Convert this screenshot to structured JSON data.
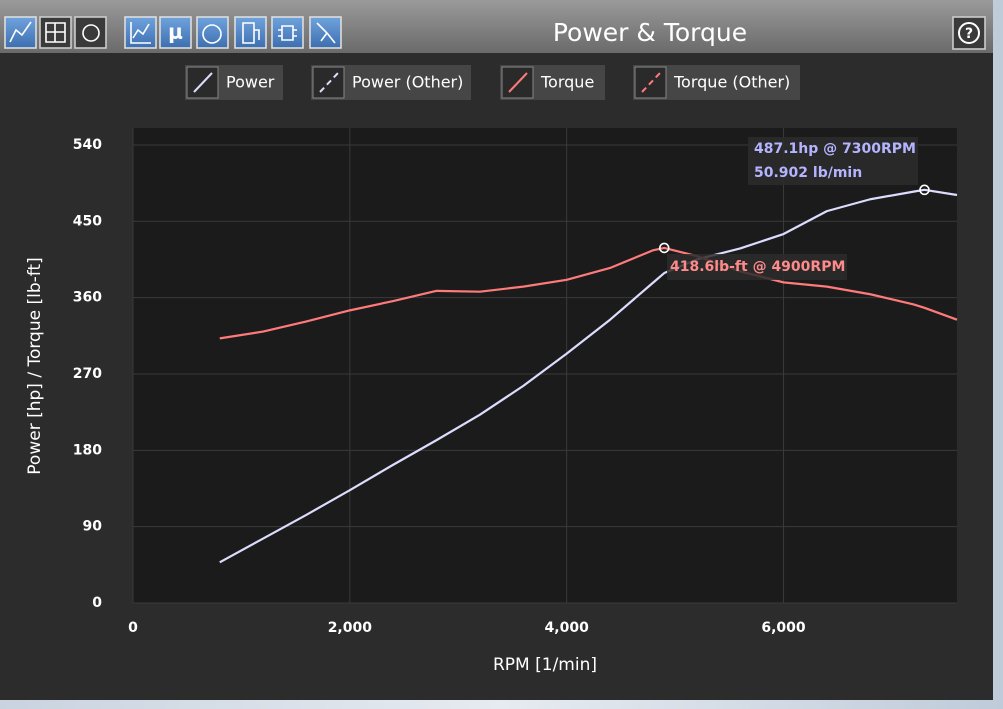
{
  "toolbar": {
    "title": "Power & Torque",
    "help": "?",
    "mu_icon": "μ"
  },
  "chart_data": {
    "type": "line",
    "xlabel": "RPM [1/min]",
    "ylabel": "Power [hp] / Torque [lb-ft]",
    "x": [
      800,
      1200,
      1600,
      2000,
      2400,
      2800,
      3200,
      3600,
      4000,
      4400,
      4800,
      4900,
      5200,
      5600,
      6000,
      6400,
      6800,
      7200,
      7300,
      7600
    ],
    "series": [
      {
        "name": "Power",
        "color": "#dcdcff",
        "values": [
          48,
          76,
          104,
          133,
          163,
          192,
          222,
          256,
          294,
          334,
          378,
          389,
          405,
          418,
          435,
          462,
          476,
          485,
          487.1,
          481
        ]
      },
      {
        "name": "Torque",
        "color": "#ff7a7a",
        "values": [
          312,
          320,
          332,
          345,
          356,
          368,
          367,
          373,
          381,
          395,
          416,
          418.6,
          409,
          391,
          378,
          373,
          364,
          352,
          348,
          334
        ]
      }
    ],
    "legend": [
      {
        "name": "Power",
        "color": "#dcdcff",
        "style": "solid"
      },
      {
        "name": "Power (Other)",
        "color": "#dcdcff",
        "style": "dashed"
      },
      {
        "name": "Torque",
        "color": "#ff7a7a",
        "style": "solid"
      },
      {
        "name": "Torque (Other)",
        "color": "#ff7a7a",
        "style": "dashed"
      }
    ],
    "annotations": [
      {
        "text": "487.1hp @ 7300RPM",
        "color": "#b4b4ff"
      },
      {
        "text": "50.902 lb/min",
        "color": "#b4b4ff"
      },
      {
        "text": "418.6lb-ft @ 4900RPM",
        "color": "#ff8a8a"
      }
    ],
    "xlim": [
      0,
      7600
    ],
    "xticks": [
      0,
      {
        "value": 2000,
        "label": "2,000"
      },
      {
        "value": 4000,
        "label": "4,000"
      },
      {
        "value": 6000,
        "label": "6,000"
      }
    ],
    "ylim": [
      0,
      560
    ],
    "yticks": [
      0,
      90,
      180,
      270,
      360,
      450,
      540
    ],
    "grid": true
  }
}
